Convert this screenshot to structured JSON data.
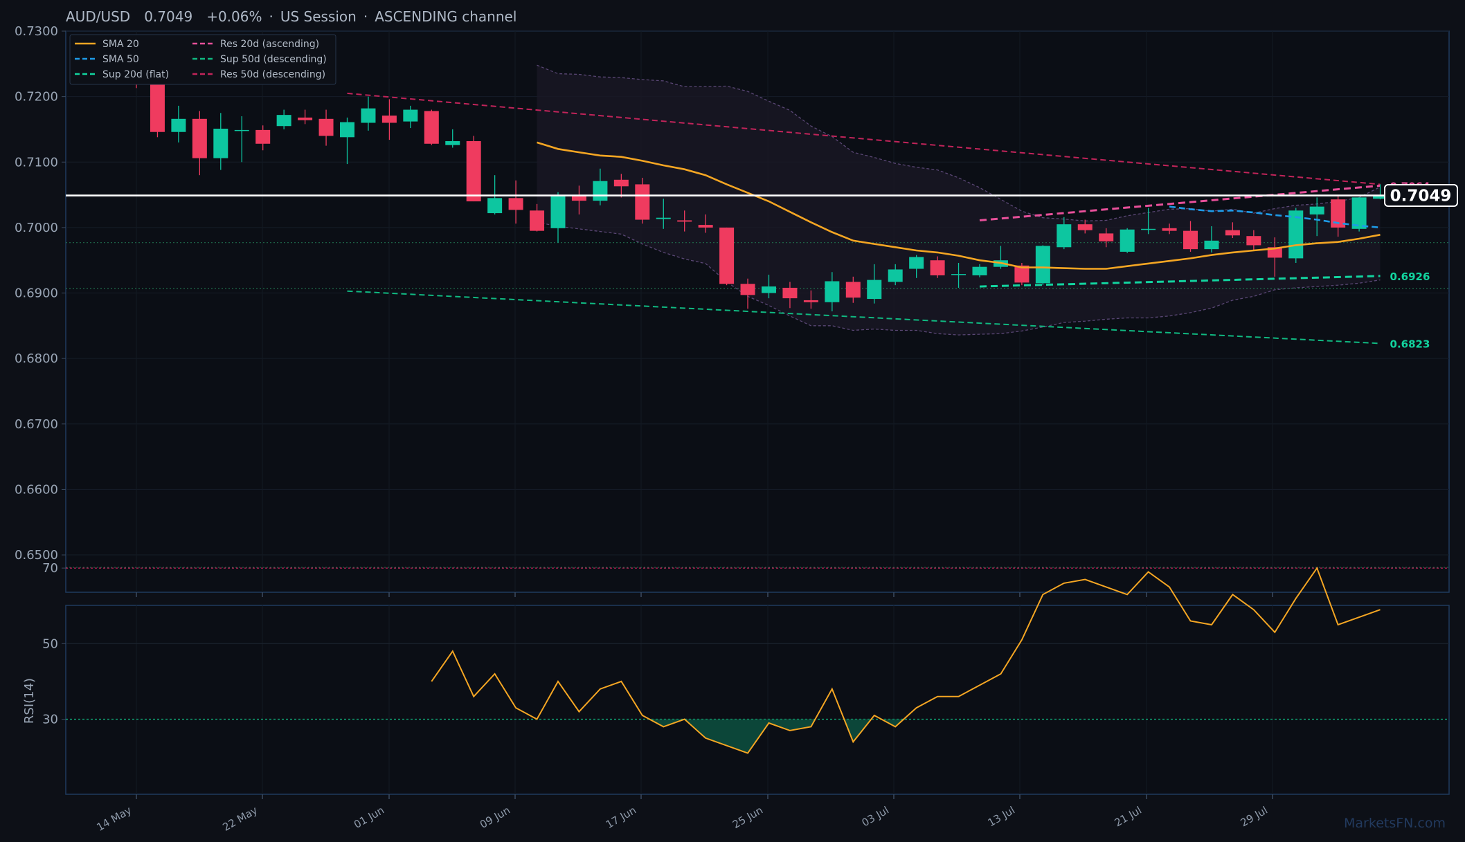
{
  "title": {
    "pair": "AUD/USD",
    "price": "0.7049",
    "change": "+0.06%",
    "session": "US Session",
    "channel": "ASCENDING channel"
  },
  "colors": {
    "background": "#0d1017",
    "up": "#0dc6a0",
    "down": "#ef3b5f",
    "sma20": "#f5a623",
    "sma50": "#1e9be8",
    "res_asc": "#e8509a",
    "sup_flat": "#12d49f",
    "sup_desc": "#10b981",
    "res_desc": "#c2245a",
    "rsi": "#f5a623"
  },
  "legend": [
    {
      "label": "SMA 20",
      "style": "solid",
      "color": "#f5a623"
    },
    {
      "label": "SMA 50",
      "style": "dashed",
      "color": "#1e9be8"
    },
    {
      "label": "Sup 20d (flat)",
      "style": "dashed",
      "color": "#12d49f"
    },
    {
      "label": "Res 20d (ascending)",
      "style": "dashed",
      "color": "#e8509a"
    },
    {
      "label": "Sup 50d (descending)",
      "style": "dashed",
      "color": "#10b981"
    },
    {
      "label": "Res 50d (descending)",
      "style": "dashed",
      "color": "#c2245a"
    }
  ],
  "price_badge": "0.7049",
  "level_labels": {
    "res_asc": "0.7064",
    "sup_flat": "0.6926",
    "sup_desc": "0.6823"
  },
  "watermark": "MarketsFN.com",
  "rsi_label": "RSI(14)",
  "chart_data": {
    "type": "candlestick",
    "x_ticks": [
      "14 May",
      "22 May",
      "01 Jun",
      "09 Jun",
      "17 Jun",
      "25 Jun",
      "03 Jul",
      "13 Jul",
      "21 Jul",
      "29 Jul"
    ],
    "y_ticks": [
      "0.7300",
      "0.7200",
      "0.7100",
      "0.7000",
      "0.6900",
      "0.6800",
      "0.6700",
      "0.6600",
      "0.6500"
    ],
    "ylim": [
      0.6443,
      0.73
    ],
    "candles": [
      {
        "o": 0.7232,
        "h": 0.7244,
        "l": 0.7213,
        "c": 0.7222
      },
      {
        "o": 0.7222,
        "h": 0.7234,
        "l": 0.7138,
        "c": 0.7146
      },
      {
        "o": 0.7146,
        "h": 0.7186,
        "l": 0.713,
        "c": 0.7166
      },
      {
        "o": 0.7166,
        "h": 0.7178,
        "l": 0.708,
        "c": 0.7106
      },
      {
        "o": 0.7106,
        "h": 0.7175,
        "l": 0.7088,
        "c": 0.7151
      },
      {
        "o": 0.7148,
        "h": 0.717,
        "l": 0.71,
        "c": 0.7149
      },
      {
        "o": 0.7149,
        "h": 0.7156,
        "l": 0.7118,
        "c": 0.7128
      },
      {
        "o": 0.7155,
        "h": 0.718,
        "l": 0.715,
        "c": 0.7172
      },
      {
        "o": 0.7168,
        "h": 0.718,
        "l": 0.7158,
        "c": 0.7164
      },
      {
        "o": 0.7166,
        "h": 0.718,
        "l": 0.7125,
        "c": 0.714
      },
      {
        "o": 0.7138,
        "h": 0.7168,
        "l": 0.7097,
        "c": 0.7161
      },
      {
        "o": 0.716,
        "h": 0.72,
        "l": 0.7148,
        "c": 0.7182
      },
      {
        "o": 0.7171,
        "h": 0.7196,
        "l": 0.7134,
        "c": 0.716
      },
      {
        "o": 0.7162,
        "h": 0.7186,
        "l": 0.7152,
        "c": 0.718
      },
      {
        "o": 0.7178,
        "h": 0.718,
        "l": 0.7126,
        "c": 0.7128
      },
      {
        "o": 0.7126,
        "h": 0.715,
        "l": 0.7122,
        "c": 0.7132
      },
      {
        "o": 0.7132,
        "h": 0.714,
        "l": 0.704,
        "c": 0.704
      },
      {
        "o": 0.7022,
        "h": 0.708,
        "l": 0.702,
        "c": 0.7045
      },
      {
        "o": 0.7045,
        "h": 0.7072,
        "l": 0.7006,
        "c": 0.7027
      },
      {
        "o": 0.7026,
        "h": 0.7036,
        "l": 0.6994,
        "c": 0.6995
      },
      {
        "o": 0.6999,
        "h": 0.7054,
        "l": 0.6977,
        "c": 0.7048
      },
      {
        "o": 0.7048,
        "h": 0.7064,
        "l": 0.702,
        "c": 0.7041
      },
      {
        "o": 0.7041,
        "h": 0.709,
        "l": 0.7034,
        "c": 0.7071
      },
      {
        "o": 0.7073,
        "h": 0.7082,
        "l": 0.7046,
        "c": 0.7063
      },
      {
        "o": 0.7066,
        "h": 0.7076,
        "l": 0.7006,
        "c": 0.7012
      },
      {
        "o": 0.7013,
        "h": 0.7044,
        "l": 0.6998,
        "c": 0.7015
      },
      {
        "o": 0.7011,
        "h": 0.7026,
        "l": 0.6994,
        "c": 0.7009
      },
      {
        "o": 0.7004,
        "h": 0.702,
        "l": 0.6992,
        "c": 0.7
      },
      {
        "o": 0.7,
        "h": 0.7,
        "l": 0.6912,
        "c": 0.6914
      },
      {
        "o": 0.6914,
        "h": 0.6922,
        "l": 0.6876,
        "c": 0.6897
      },
      {
        "o": 0.69,
        "h": 0.6928,
        "l": 0.6892,
        "c": 0.691
      },
      {
        "o": 0.6908,
        "h": 0.6917,
        "l": 0.6877,
        "c": 0.6892
      },
      {
        "o": 0.6889,
        "h": 0.6904,
        "l": 0.6876,
        "c": 0.6886
      },
      {
        "o": 0.6886,
        "h": 0.6932,
        "l": 0.6872,
        "c": 0.6918
      },
      {
        "o": 0.6917,
        "h": 0.6925,
        "l": 0.6885,
        "c": 0.6893
      },
      {
        "o": 0.6891,
        "h": 0.6944,
        "l": 0.6884,
        "c": 0.692
      },
      {
        "o": 0.6917,
        "h": 0.6944,
        "l": 0.6912,
        "c": 0.6936
      },
      {
        "o": 0.6937,
        "h": 0.6958,
        "l": 0.6923,
        "c": 0.6955
      },
      {
        "o": 0.695,
        "h": 0.6956,
        "l": 0.6923,
        "c": 0.6927
      },
      {
        "o": 0.6928,
        "h": 0.6946,
        "l": 0.6908,
        "c": 0.6929
      },
      {
        "o": 0.6927,
        "h": 0.6944,
        "l": 0.6924,
        "c": 0.694
      },
      {
        "o": 0.694,
        "h": 0.6972,
        "l": 0.6937,
        "c": 0.695
      },
      {
        "o": 0.6942,
        "h": 0.6946,
        "l": 0.6912,
        "c": 0.6916
      },
      {
        "o": 0.6915,
        "h": 0.6973,
        "l": 0.6912,
        "c": 0.6972
      },
      {
        "o": 0.697,
        "h": 0.7016,
        "l": 0.6967,
        "c": 0.7005
      },
      {
        "o": 0.7005,
        "h": 0.7012,
        "l": 0.6991,
        "c": 0.6996
      },
      {
        "o": 0.6991,
        "h": 0.6999,
        "l": 0.697,
        "c": 0.6979
      },
      {
        "o": 0.6963,
        "h": 0.6999,
        "l": 0.6961,
        "c": 0.6997
      },
      {
        "o": 0.6997,
        "h": 0.703,
        "l": 0.699,
        "c": 0.6998
      },
      {
        "o": 0.6999,
        "h": 0.7006,
        "l": 0.699,
        "c": 0.6995
      },
      {
        "o": 0.6995,
        "h": 0.701,
        "l": 0.6963,
        "c": 0.6967
      },
      {
        "o": 0.6967,
        "h": 0.7002,
        "l": 0.6962,
        "c": 0.698
      },
      {
        "o": 0.6996,
        "h": 0.7008,
        "l": 0.6984,
        "c": 0.6988
      },
      {
        "o": 0.6987,
        "h": 0.6996,
        "l": 0.6966,
        "c": 0.6973
      },
      {
        "o": 0.697,
        "h": 0.6985,
        "l": 0.6925,
        "c": 0.6954
      },
      {
        "o": 0.6953,
        "h": 0.703,
        "l": 0.6946,
        "c": 0.7026
      },
      {
        "o": 0.702,
        "h": 0.7046,
        "l": 0.6987,
        "c": 0.7032
      },
      {
        "o": 0.7043,
        "h": 0.705,
        "l": 0.6986,
        "c": 0.7
      },
      {
        "o": 0.6998,
        "h": 0.7046,
        "l": 0.6994,
        "c": 0.7046
      },
      {
        "o": 0.7044,
        "h": 0.7066,
        "l": 0.7043,
        "c": 0.7049
      }
    ],
    "current_price": 0.7049,
    "sma20": [
      0.713,
      0.712,
      0.7115,
      0.711,
      0.7108,
      0.7102,
      0.7095,
      0.7089,
      0.708,
      0.7066,
      0.7053,
      0.704,
      0.7024,
      0.7008,
      0.6993,
      0.698,
      0.6975,
      0.697,
      0.6965,
      0.6962,
      0.6957,
      0.695,
      0.6946,
      0.6939,
      0.6939,
      0.6938,
      0.6937,
      0.6937,
      0.6941,
      0.6945,
      0.6949,
      0.6953,
      0.6958,
      0.6962,
      0.6965,
      0.6968,
      0.6973,
      0.6976,
      0.6978,
      0.6983,
      0.6989
    ],
    "sma20_start_index": 19,
    "sma50": [
      0.7032,
      0.7028,
      0.7025,
      0.7026,
      0.7023,
      0.7019,
      0.7016,
      0.7012,
      0.7007,
      0.7003,
      0.7
    ],
    "sma50_start_index": 49,
    "bollinger_upper": [
      0.7248,
      0.7235,
      0.7234,
      0.723,
      0.7229,
      0.7226,
      0.7224,
      0.7215,
      0.7215,
      0.7216,
      0.7208,
      0.7193,
      0.7179,
      0.7155,
      0.7139,
      0.7115,
      0.7107,
      0.7098,
      0.7092,
      0.7088,
      0.7076,
      0.7061,
      0.7043,
      0.7025,
      0.7015,
      0.7013,
      0.701,
      0.7011,
      0.7018,
      0.7023,
      0.7028,
      0.7029,
      0.7025,
      0.7028,
      0.7022,
      0.7029,
      0.7034,
      0.7036,
      0.704,
      0.7046,
      0.7062
    ],
    "bollinger_lower": [
      0.7008,
      0.7002,
      0.6998,
      0.6994,
      0.699,
      0.6975,
      0.6962,
      0.6952,
      0.6945,
      0.6917,
      0.6895,
      0.6881,
      0.6865,
      0.685,
      0.685,
      0.6843,
      0.6845,
      0.6843,
      0.6843,
      0.6838,
      0.6836,
      0.6837,
      0.6838,
      0.6842,
      0.6848,
      0.6855,
      0.6857,
      0.686,
      0.6862,
      0.6862,
      0.6865,
      0.687,
      0.6877,
      0.6889,
      0.6895,
      0.6905,
      0.6908,
      0.691,
      0.6912,
      0.6915,
      0.692
    ],
    "bollinger_start_index": 19,
    "res_50d_descending": {
      "from": [
        10,
        0.7205
      ],
      "to": [
        59,
        0.7066
      ]
    },
    "sup_50d_descending": {
      "from": [
        10,
        0.6903
      ],
      "to": [
        59,
        0.6823
      ]
    },
    "res_20d_ascending": {
      "from": [
        40,
        0.7011
      ],
      "to": [
        59,
        0.7064
      ]
    },
    "sup_20d_flat": {
      "from": [
        40,
        0.691
      ],
      "to": [
        59,
        0.6926
      ]
    },
    "dotted_levels": [
      0.6977,
      0.6907,
      0.6481
    ],
    "rsi": {
      "y_ticks": [
        "70",
        "50",
        "30"
      ],
      "ylim": [
        0,
        100
      ],
      "overbought": 70,
      "oversold": 30,
      "start_index": 14,
      "values": [
        40,
        48,
        36,
        42,
        33,
        30,
        40,
        32,
        38,
        40,
        31,
        28,
        30,
        25,
        23,
        21,
        29,
        27,
        28,
        38,
        24,
        31,
        28,
        33,
        36,
        36,
        39,
        42,
        51,
        63,
        66,
        67,
        65,
        63,
        69,
        65,
        56,
        55,
        63,
        59,
        53,
        62,
        70,
        55,
        57,
        59
      ]
    }
  }
}
